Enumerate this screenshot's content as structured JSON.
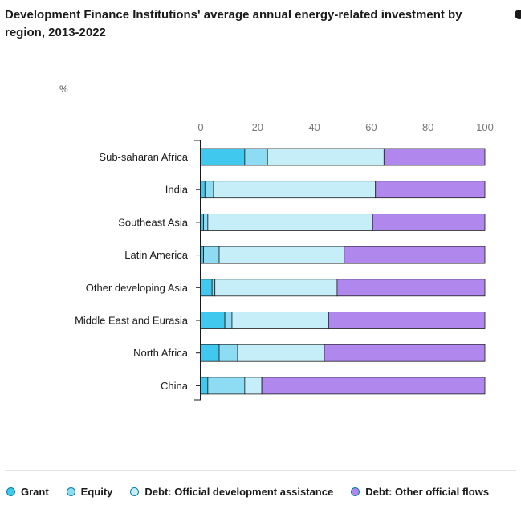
{
  "title": "Development Finance Institutions' average annual energy-related investment by region, 2013-2022",
  "unit_label": "%",
  "chart_data": {
    "type": "bar",
    "orientation": "horizontal",
    "stacked": true,
    "xlim": [
      0,
      100
    ],
    "ticks": [
      "0",
      "20",
      "40",
      "60",
      "80",
      "100"
    ],
    "categories": [
      "Sub-saharan Africa",
      "India",
      "Southeast Asia",
      "Latin America",
      "Other developing Asia",
      "Middle East and Eurasia",
      "North Africa",
      "China"
    ],
    "series": [
      {
        "name": "Grant",
        "color": "#40c8ef",
        "values": [
          15.5,
          1.5,
          1,
          1,
          4,
          8.5,
          6.5,
          2.5
        ]
      },
      {
        "name": "Equity",
        "color": "#8ddcf3",
        "values": [
          8,
          3,
          1.5,
          5.5,
          1,
          2.5,
          6.5,
          13
        ]
      },
      {
        "name": "Debt: Official development assistance",
        "color": "#c6eef9",
        "values": [
          41,
          57,
          58,
          44,
          43,
          34,
          30.5,
          6
        ]
      },
      {
        "name": "Debt: Other official flows",
        "color": "#b087ec",
        "values": [
          35.5,
          38.5,
          39.5,
          49.5,
          52,
          55,
          56.5,
          78.5
        ]
      }
    ],
    "legend_position": "bottom",
    "grid": false
  }
}
